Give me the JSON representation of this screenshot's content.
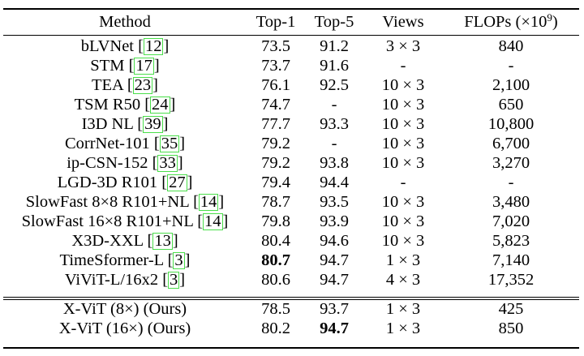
{
  "table": {
    "headers": [
      "Method",
      "Top-1",
      "Top-5",
      "Views",
      "FLOPs (×10",
      "9",
      ")"
    ],
    "rows": [
      {
        "method": "bLVNet",
        "cite": "12",
        "top1": "73.5",
        "top5": "91.2",
        "views": "3 × 3",
        "flops": "840"
      },
      {
        "method": "STM",
        "cite": "17",
        "top1": "73.7",
        "top5": "91.6",
        "views": "-",
        "flops": "-"
      },
      {
        "method": "TEA",
        "cite": "23",
        "top1": "76.1",
        "top5": "92.5",
        "views": "10 × 3",
        "flops": "2,100"
      },
      {
        "method": "TSM R50",
        "cite": "24",
        "top1": "74.7",
        "top5": "-",
        "views": "10 × 3",
        "flops": "650"
      },
      {
        "method": "I3D NL",
        "cite": "39",
        "top1": "77.7",
        "top5": "93.3",
        "views": "10 × 3",
        "flops": "10,800"
      },
      {
        "method": "CorrNet-101",
        "cite": "35",
        "top1": "79.2",
        "top5": "-",
        "views": "10 × 3",
        "flops": "6,700"
      },
      {
        "method": "ip-CSN-152",
        "cite": "33",
        "top1": "79.2",
        "top5": "93.8",
        "views": "10 × 3",
        "flops": "3,270"
      },
      {
        "method": "LGD-3D R101",
        "cite": "27",
        "top1": "79.4",
        "top5": "94.4",
        "views": "-",
        "flops": "-"
      },
      {
        "method": "SlowFast 8×8 R101+NL",
        "cite": "14",
        "top1": "78.7",
        "top5": "93.5",
        "views": "10 × 3",
        "flops": "3,480"
      },
      {
        "method": "SlowFast 16×8 R101+NL",
        "cite": "14",
        "top1": "79.8",
        "top5": "93.9",
        "views": "10 × 3",
        "flops": "7,020"
      },
      {
        "method": "X3D-XXL",
        "cite": "13",
        "top1": "80.4",
        "top5": "94.6",
        "views": "10 × 3",
        "flops": "5,823"
      },
      {
        "method": "TimeSformer-L",
        "cite": "3",
        "top1": "80.7",
        "top5": "94.7",
        "views": "1 × 3",
        "flops": "7,140"
      },
      {
        "method": "ViViT-L/16x2",
        "cite": "3",
        "top1": "80.6",
        "top5": "94.7",
        "views": "4 × 3",
        "flops": "17,352"
      }
    ],
    "ours": [
      {
        "method": "X-ViT (8×) (Ours)",
        "top1": "78.5",
        "top5": "93.7",
        "views": "1 × 3",
        "flops": "425"
      },
      {
        "method": "X-ViT (16×) (Ours)",
        "top1": "80.2",
        "top5": "94.7",
        "views": "1 × 3",
        "flops": "850"
      }
    ],
    "bold_cells": [
      "TimeSformer-L top1",
      "X-ViT (16×) (Ours) top5"
    ],
    "cite_box_color": "#4ade4a"
  }
}
